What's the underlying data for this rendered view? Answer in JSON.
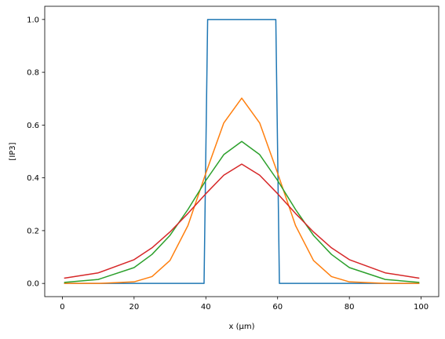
{
  "chart_data": {
    "type": "line",
    "title": "",
    "xlabel": "x (μm)",
    "ylabel": "[IP3]",
    "xlim": [
      -4.9,
      104.9
    ],
    "ylim": [
      -0.05,
      1.05
    ],
    "xticks": [
      0,
      20,
      40,
      60,
      80,
      100
    ],
    "yticks": [
      0.0,
      0.2,
      0.4,
      0.6,
      0.8,
      1.0
    ],
    "xtick_labels": [
      "0",
      "20",
      "40",
      "60",
      "80",
      "100"
    ],
    "ytick_labels": [
      "0.0",
      "0.2",
      "0.4",
      "0.6",
      "0.8",
      "1.0"
    ],
    "grid": false,
    "legend": "none",
    "series": [
      {
        "color": "#1f77b4",
        "x": [
          0.5,
          39.5,
          40.5,
          59.5,
          60.5,
          99.5
        ],
        "y": [
          0,
          0,
          1,
          1,
          0,
          0
        ]
      },
      {
        "color": "#ff7f0e",
        "x": [
          0.5,
          10,
          20,
          25,
          30,
          35,
          40,
          45,
          50,
          55,
          60,
          65,
          70,
          75,
          80,
          90,
          99.5
        ],
        "y": [
          0.0,
          0.0,
          0.006,
          0.026,
          0.087,
          0.219,
          0.418,
          0.608,
          0.702,
          0.608,
          0.418,
          0.219,
          0.087,
          0.026,
          0.006,
          0.0,
          0.0
        ]
      },
      {
        "color": "#2ca02c",
        "x": [
          0.5,
          10,
          20,
          25,
          30,
          35,
          40,
          45,
          50,
          55,
          60,
          65,
          70,
          75,
          80,
          90,
          99.5
        ],
        "y": [
          0.004,
          0.015,
          0.06,
          0.11,
          0.182,
          0.28,
          0.39,
          0.488,
          0.538,
          0.488,
          0.39,
          0.28,
          0.182,
          0.11,
          0.06,
          0.015,
          0.004
        ]
      },
      {
        "color": "#d62728",
        "x": [
          0.5,
          10,
          20,
          25,
          30,
          35,
          40,
          45,
          50,
          55,
          60,
          65,
          70,
          75,
          80,
          90,
          99.5
        ],
        "y": [
          0.02,
          0.04,
          0.09,
          0.135,
          0.195,
          0.265,
          0.34,
          0.41,
          0.452,
          0.41,
          0.34,
          0.265,
          0.195,
          0.135,
          0.09,
          0.04,
          0.02
        ]
      }
    ]
  }
}
